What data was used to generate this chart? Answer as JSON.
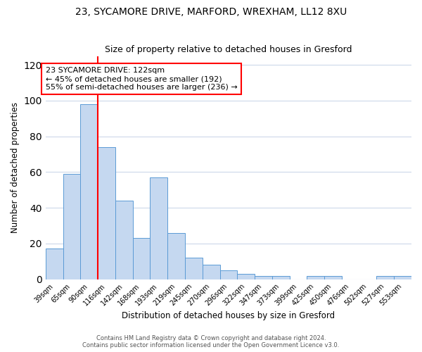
{
  "title1": "23, SYCAMORE DRIVE, MARFORD, WREXHAM, LL12 8XU",
  "title2": "Size of property relative to detached houses in Gresford",
  "xlabel": "Distribution of detached houses by size in Gresford",
  "ylabel": "Number of detached properties",
  "bin_labels": [
    "39sqm",
    "65sqm",
    "90sqm",
    "116sqm",
    "142sqm",
    "168sqm",
    "193sqm",
    "219sqm",
    "245sqm",
    "270sqm",
    "296sqm",
    "322sqm",
    "347sqm",
    "373sqm",
    "399sqm",
    "425sqm",
    "450sqm",
    "476sqm",
    "502sqm",
    "527sqm",
    "553sqm"
  ],
  "bar_values": [
    17,
    59,
    98,
    74,
    44,
    23,
    57,
    26,
    12,
    8,
    5,
    3,
    2,
    2,
    0,
    2,
    2,
    0,
    0,
    2,
    2
  ],
  "bar_color": "#c5d8f0",
  "bar_edge_color": "#5b9bd5",
  "vline_color": "red",
  "vline_position": 2.5,
  "annotation_title": "23 SYCAMORE DRIVE: 122sqm",
  "annotation_line1": "← 45% of detached houses are smaller (192)",
  "annotation_line2": "55% of semi-detached houses are larger (236) →",
  "annotation_box_color": "white",
  "annotation_box_edgecolor": "red",
  "ylim": [
    0,
    125
  ],
  "yticks": [
    0,
    20,
    40,
    60,
    80,
    100,
    120
  ],
  "footer1": "Contains HM Land Registry data © Crown copyright and database right 2024.",
  "footer2": "Contains public sector information licensed under the Open Government Licence v3.0."
}
